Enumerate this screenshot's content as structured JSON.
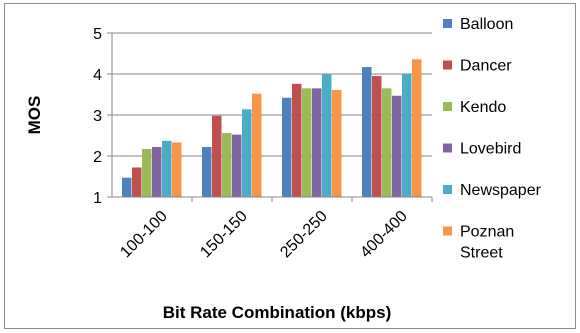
{
  "chart_data": {
    "type": "bar",
    "title": "",
    "xlabel": "Bit Rate Combination (kbps)",
    "ylabel": "MOS",
    "ylim": [
      1,
      5
    ],
    "yticks": [
      1,
      2,
      3,
      4,
      5
    ],
    "grid": true,
    "legend_position": "right",
    "categories": [
      "100-100",
      "150-150",
      "250-250",
      "400-400"
    ],
    "series": [
      {
        "name": "Balloon",
        "color": "#4F81BD",
        "values": [
          1.47,
          2.22,
          3.42,
          4.17
        ]
      },
      {
        "name": "Dancer",
        "color": "#C0504D",
        "values": [
          1.72,
          2.98,
          3.76,
          3.95
        ]
      },
      {
        "name": "Kendo",
        "color": "#9BBB59",
        "values": [
          2.17,
          2.56,
          3.65,
          3.65
        ]
      },
      {
        "name": "Lovebird",
        "color": "#8064A2",
        "values": [
          2.22,
          2.52,
          3.65,
          3.47
        ]
      },
      {
        "name": "Newspaper",
        "color": "#4BACC6",
        "values": [
          2.37,
          3.14,
          4.0,
          4.0
        ]
      },
      {
        "name": "Poznan Street",
        "color": "#F79646",
        "values": [
          2.33,
          3.52,
          3.61,
          4.36
        ]
      }
    ]
  }
}
